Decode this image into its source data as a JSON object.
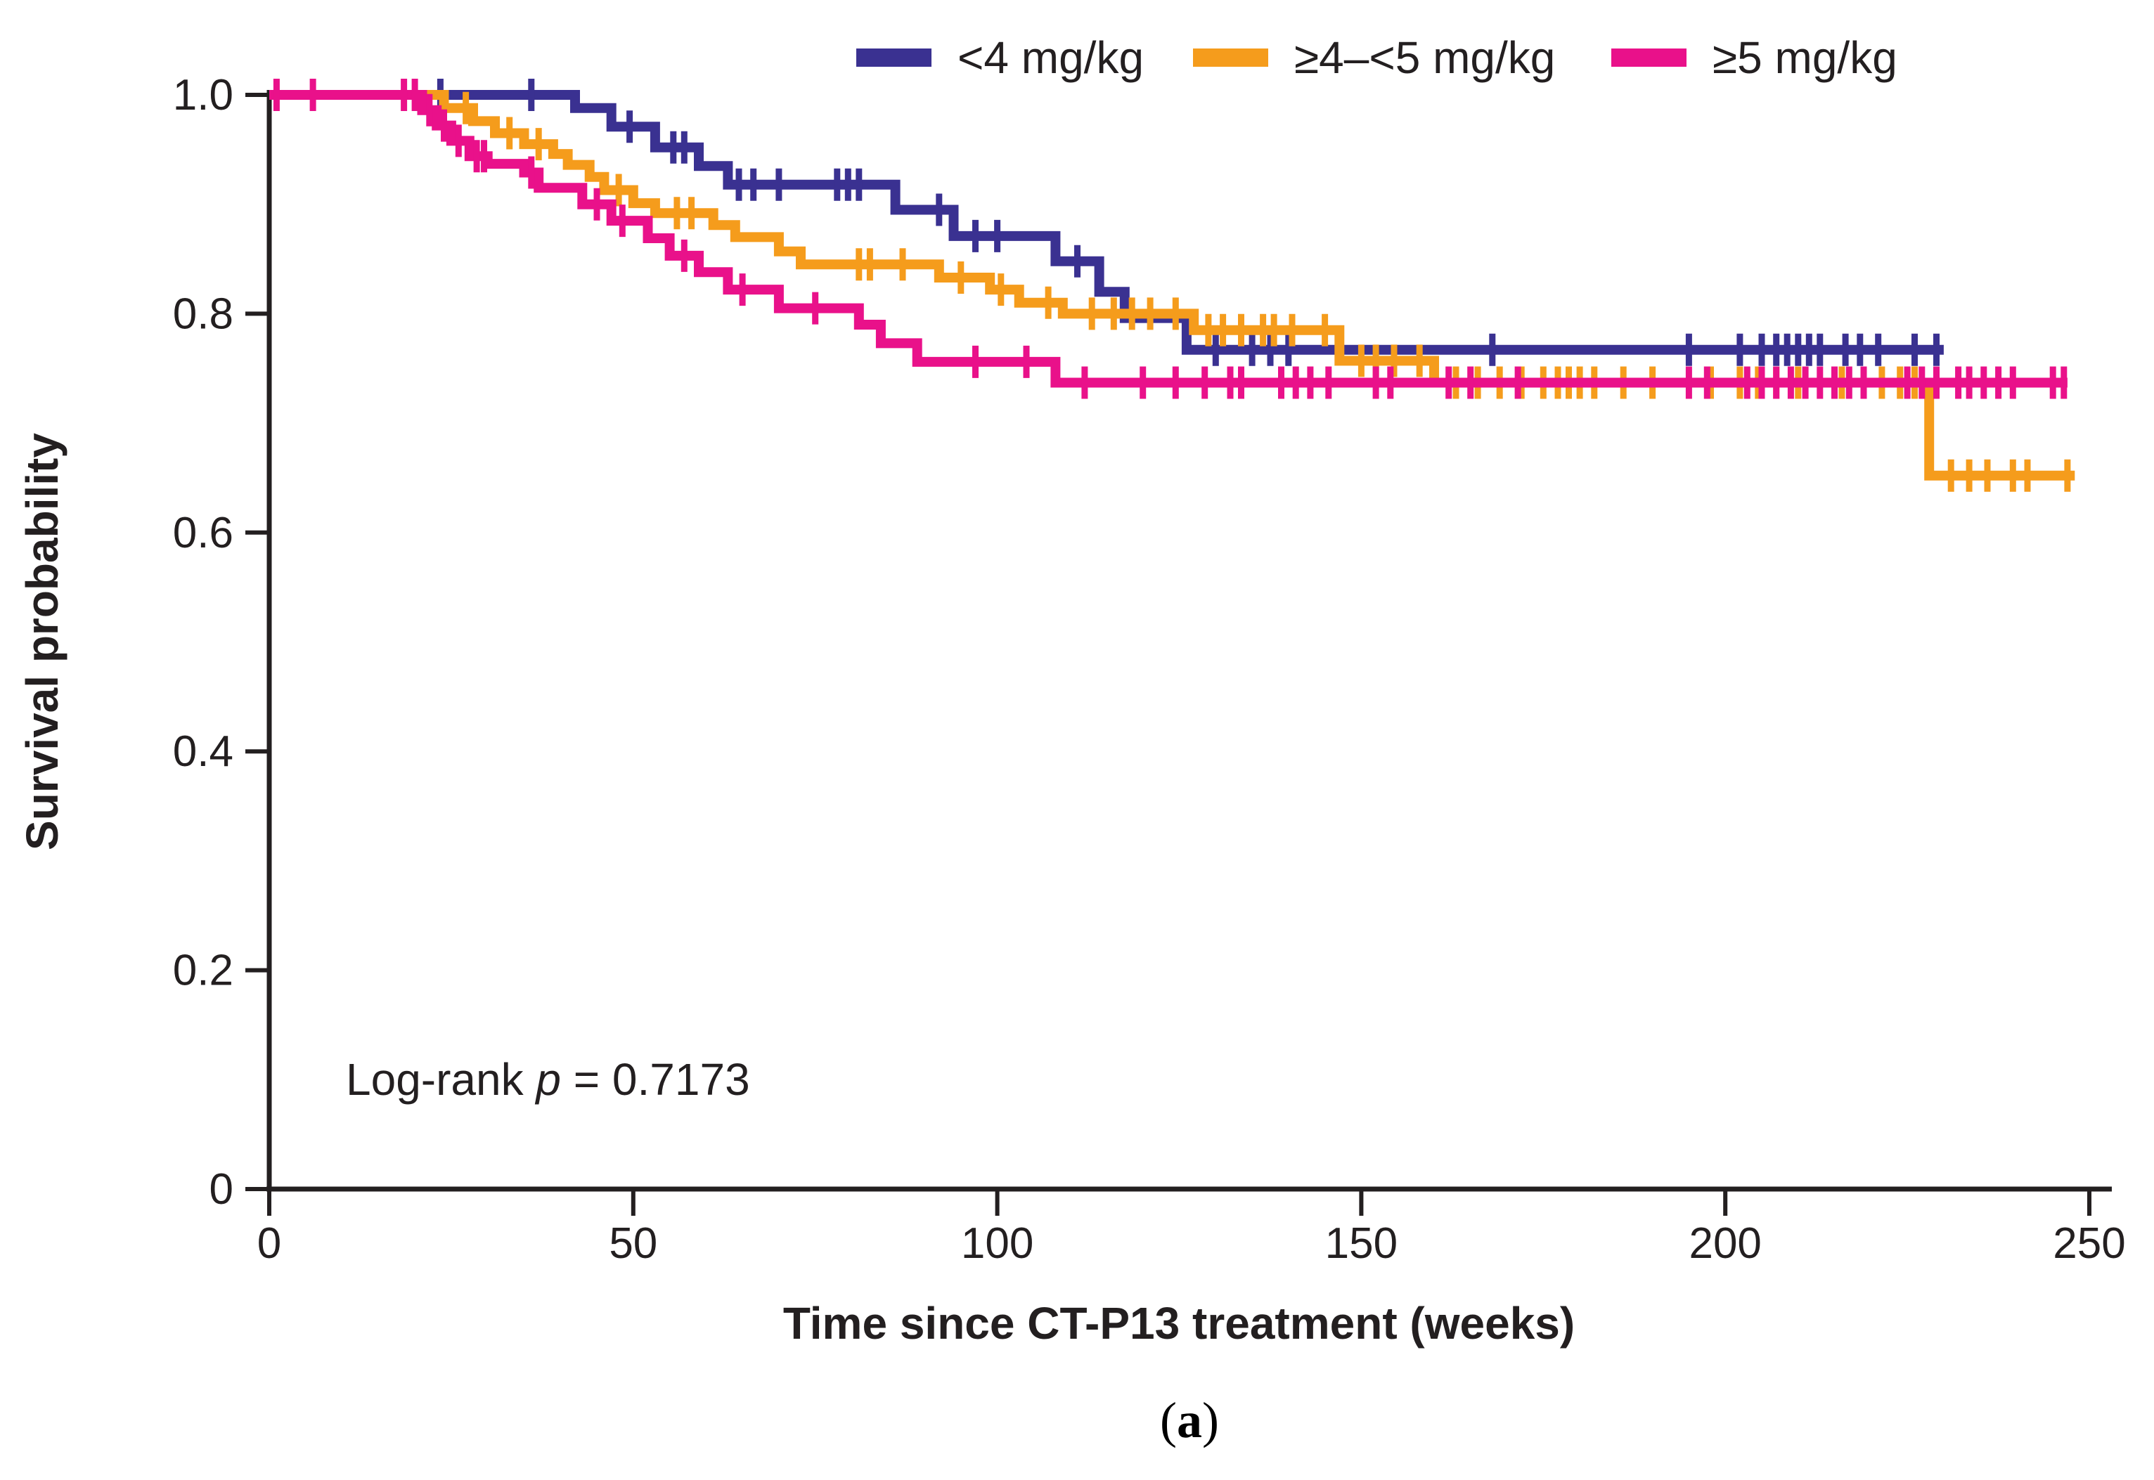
{
  "figure": {
    "background": "#ffffff",
    "caption_letter": "a",
    "caption_open": "(",
    "caption_close": ")"
  },
  "legend": {
    "position": "top",
    "items": [
      {
        "label": "<4 mg/kg",
        "color": "#3a3191"
      },
      {
        "label": "≥4–<5 mg/kg",
        "color": "#f59c1c"
      },
      {
        "label": "≥5 mg/kg",
        "color": "#e9118a"
      }
    ]
  },
  "annotation": {
    "prefix": "Log-rank ",
    "p": "p",
    "value": " = 0.7173",
    "log_rank_p": 0.7173
  },
  "chart_data": {
    "type": "line",
    "subtype": "kaplan-meier-step",
    "title": "",
    "xlabel": "Time since CT-P13 treatment (weeks)",
    "ylabel": "Survival probability",
    "xlim": [
      0,
      250
    ],
    "ylim": [
      0,
      1.0
    ],
    "xticks": [
      0,
      50,
      100,
      150,
      200,
      250
    ],
    "yticks": [
      1.0,
      0.8,
      0.6,
      0.4,
      0.2,
      0
    ],
    "ytick_labels": [
      "1.0",
      "0.8",
      "0.6",
      "0.4",
      "0.2",
      "0"
    ],
    "grid": false,
    "legend_position": "top",
    "axis_color": "#231f20",
    "log_rank_p": 0.7173,
    "series": [
      {
        "id": "lt4",
        "name": "<4 mg/kg",
        "color": "#3a3191",
        "start": [
          0,
          1.0
        ],
        "end_week": 230,
        "steps": [
          [
            42,
            0.988
          ],
          [
            47,
            0.971
          ],
          [
            53,
            0.952
          ],
          [
            59,
            0.935
          ],
          [
            63,
            0.918
          ],
          [
            86,
            0.895
          ],
          [
            94,
            0.871
          ],
          [
            108,
            0.848
          ],
          [
            114,
            0.82
          ],
          [
            117.5,
            0.796
          ],
          [
            126,
            0.767
          ]
        ],
        "censors": [
          [
            23.5,
            1
          ],
          [
            36,
            1
          ],
          [
            49.5,
            0.971
          ],
          [
            55.5,
            0.952
          ],
          [
            57,
            0.952
          ],
          [
            64.5,
            0.918
          ],
          [
            66.5,
            0.918
          ],
          [
            70,
            0.918
          ],
          [
            78,
            0.918
          ],
          [
            79.5,
            0.918
          ],
          [
            81,
            0.918
          ],
          [
            92,
            0.895
          ],
          [
            97,
            0.871
          ],
          [
            100,
            0.871
          ],
          [
            111,
            0.848
          ],
          [
            130,
            0.767
          ],
          [
            135,
            0.767
          ],
          [
            137.5,
            0.767
          ],
          [
            140,
            0.767
          ],
          [
            168,
            0.767
          ],
          [
            195,
            0.767
          ],
          [
            202,
            0.767
          ],
          [
            205,
            0.767
          ],
          [
            207,
            0.767
          ],
          [
            208.5,
            0.767
          ],
          [
            210,
            0.767
          ],
          [
            211.5,
            0.767
          ],
          [
            213,
            0.767
          ],
          [
            216.5,
            0.767
          ],
          [
            218.5,
            0.767
          ],
          [
            221,
            0.767
          ],
          [
            226,
            0.767
          ],
          [
            229,
            0.767
          ]
        ]
      },
      {
        "id": "ge4lt5",
        "name": "≥4–<5 mg/kg",
        "color": "#f59c1c",
        "start": [
          0,
          1.0
        ],
        "end_week": 248,
        "steps": [
          [
            24,
            0.988
          ],
          [
            28,
            0.976
          ],
          [
            31,
            0.965
          ],
          [
            35,
            0.955
          ],
          [
            39,
            0.946
          ],
          [
            41,
            0.936
          ],
          [
            44,
            0.925
          ],
          [
            46,
            0.913
          ],
          [
            50,
            0.901
          ],
          [
            53,
            0.892
          ],
          [
            61,
            0.881
          ],
          [
            64,
            0.87
          ],
          [
            70,
            0.857
          ],
          [
            73,
            0.845
          ],
          [
            92,
            0.833
          ],
          [
            99,
            0.822
          ],
          [
            103,
            0.81
          ],
          [
            109,
            0.8
          ],
          [
            127,
            0.785
          ],
          [
            147,
            0.757
          ],
          [
            160,
            0.737
          ],
          [
            228,
            0.652
          ]
        ],
        "censors": [
          [
            27,
            0.988
          ],
          [
            33,
            0.965
          ],
          [
            37,
            0.955
          ],
          [
            48,
            0.913
          ],
          [
            56,
            0.892
          ],
          [
            58,
            0.892
          ],
          [
            81,
            0.845
          ],
          [
            82.5,
            0.845
          ],
          [
            87,
            0.845
          ],
          [
            95,
            0.833
          ],
          [
            100.5,
            0.822
          ],
          [
            107,
            0.81
          ],
          [
            113,
            0.8
          ],
          [
            116,
            0.8
          ],
          [
            118.5,
            0.8
          ],
          [
            121,
            0.8
          ],
          [
            124.5,
            0.8
          ],
          [
            129,
            0.785
          ],
          [
            131,
            0.785
          ],
          [
            133.5,
            0.785
          ],
          [
            136.5,
            0.785
          ],
          [
            138,
            0.785
          ],
          [
            140.5,
            0.785
          ],
          [
            145,
            0.785
          ],
          [
            150,
            0.757
          ],
          [
            152,
            0.757
          ],
          [
            154.5,
            0.757
          ],
          [
            158,
            0.757
          ],
          [
            163,
            0.737
          ],
          [
            166,
            0.737
          ],
          [
            169,
            0.737
          ],
          [
            172,
            0.737
          ],
          [
            175,
            0.737
          ],
          [
            177,
            0.737
          ],
          [
            178.5,
            0.737
          ],
          [
            180,
            0.737
          ],
          [
            182,
            0.737
          ],
          [
            186,
            0.737
          ],
          [
            190,
            0.737
          ],
          [
            198,
            0.737
          ],
          [
            202,
            0.737
          ],
          [
            204.5,
            0.737
          ],
          [
            207,
            0.737
          ],
          [
            210,
            0.737
          ],
          [
            216,
            0.737
          ],
          [
            219,
            0.737
          ],
          [
            221.5,
            0.737
          ],
          [
            224,
            0.737
          ],
          [
            226,
            0.737
          ],
          [
            231,
            0.652
          ],
          [
            233.5,
            0.652
          ],
          [
            236,
            0.652
          ],
          [
            239.5,
            0.652
          ],
          [
            241.5,
            0.652
          ],
          [
            247,
            0.652
          ]
        ]
      },
      {
        "id": "ge5",
        "name": "≥5 mg/kg",
        "color": "#e9118a",
        "start": [
          0,
          1.0
        ],
        "end_week": 247,
        "steps": [
          [
            21,
            0.986
          ],
          [
            23,
            0.972
          ],
          [
            25,
            0.958
          ],
          [
            27.5,
            0.944
          ],
          [
            30,
            0.937
          ],
          [
            35,
            0.929
          ],
          [
            37,
            0.915
          ],
          [
            43,
            0.9
          ],
          [
            47,
            0.885
          ],
          [
            52,
            0.869
          ],
          [
            55,
            0.853
          ],
          [
            59,
            0.838
          ],
          [
            63,
            0.822
          ],
          [
            70,
            0.805
          ],
          [
            81,
            0.79
          ],
          [
            84,
            0.773
          ],
          [
            89,
            0.756
          ],
          [
            108,
            0.737
          ]
        ],
        "censors": [
          [
            1,
            1
          ],
          [
            6,
            1
          ],
          [
            18.5,
            1
          ],
          [
            20,
            1
          ],
          [
            22,
            0.986
          ],
          [
            24,
            0.972
          ],
          [
            26,
            0.958
          ],
          [
            28.5,
            0.944
          ],
          [
            29.5,
            0.944
          ],
          [
            36,
            0.929
          ],
          [
            45,
            0.9
          ],
          [
            48.5,
            0.885
          ],
          [
            57,
            0.853
          ],
          [
            65,
            0.822
          ],
          [
            75,
            0.805
          ],
          [
            97,
            0.756
          ],
          [
            104,
            0.756
          ],
          [
            112,
            0.737
          ],
          [
            120,
            0.737
          ],
          [
            124.5,
            0.737
          ],
          [
            128.5,
            0.737
          ],
          [
            132,
            0.737
          ],
          [
            133.5,
            0.737
          ],
          [
            139,
            0.737
          ],
          [
            141,
            0.737
          ],
          [
            143,
            0.737
          ],
          [
            145.5,
            0.737
          ],
          [
            152,
            0.737
          ],
          [
            154,
            0.737
          ],
          [
            162,
            0.737
          ],
          [
            165,
            0.737
          ],
          [
            171.5,
            0.737
          ],
          [
            195,
            0.737
          ],
          [
            197.5,
            0.737
          ],
          [
            203,
            0.737
          ],
          [
            205,
            0.737
          ],
          [
            207,
            0.737
          ],
          [
            209,
            0.737
          ],
          [
            211,
            0.737
          ],
          [
            213,
            0.737
          ],
          [
            215,
            0.737
          ],
          [
            217,
            0.737
          ],
          [
            219,
            0.737
          ],
          [
            225,
            0.737
          ],
          [
            227,
            0.737
          ],
          [
            229,
            0.737
          ],
          [
            232,
            0.737
          ],
          [
            233.5,
            0.737
          ],
          [
            235.5,
            0.737
          ],
          [
            237.5,
            0.737
          ],
          [
            239.5,
            0.737
          ],
          [
            245,
            0.737
          ],
          [
            246.5,
            0.737
          ]
        ]
      }
    ]
  }
}
